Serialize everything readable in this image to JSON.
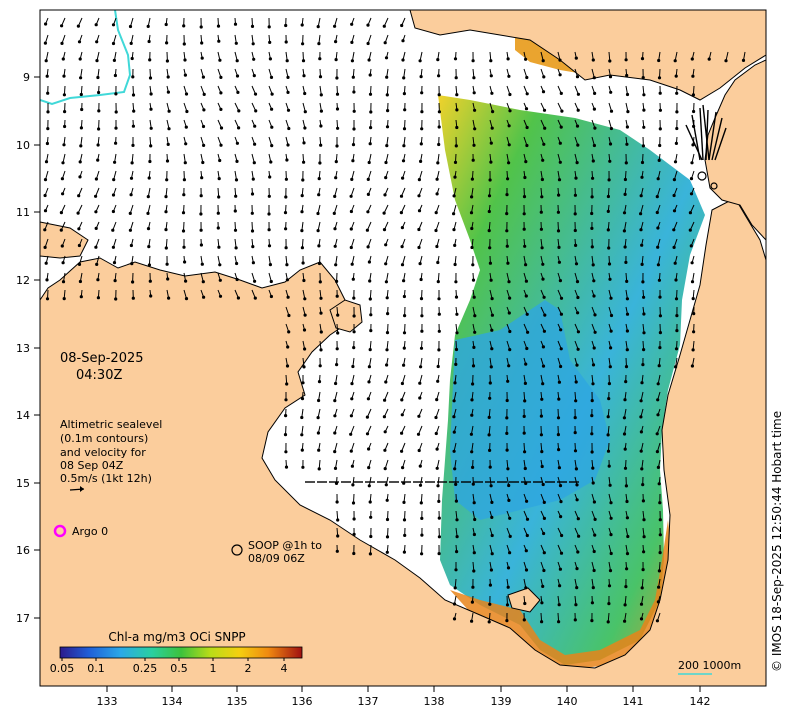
{
  "map": {
    "datetime_line1": "08-Sep-2025",
    "datetime_line2": "04:30Z",
    "sealevel_note": [
      "Altimetric sealevel",
      "(0.1m contours)",
      "and velocity for",
      "08 Sep 04Z",
      "0.5m/s (1kt 12h)"
    ],
    "argo_label": "Argo 0",
    "argo_color": "#ff00ff",
    "soop_label_line1": "SOOP @1h to",
    "soop_label_line2": "08/09 06Z",
    "credit": "© IMOS 18-Sep-2025 12:50:44 Hobart time",
    "scale_label": "200  1000m",
    "land_color": "#fbcd9c",
    "coast_color": "#000000",
    "contour_color": "#40d8d8"
  },
  "axes": {
    "lat_ticks": [
      "9",
      "10",
      "11",
      "12",
      "13",
      "14",
      "15",
      "16",
      "17"
    ],
    "lon_ticks": [
      "133",
      "134",
      "135",
      "136",
      "137",
      "138",
      "139",
      "140",
      "141",
      "142"
    ]
  },
  "colorbar": {
    "title": "Chl-a mg/m3 OCi SNPP",
    "ticks": [
      "0.05",
      "0.1",
      "0.25",
      "0.5",
      "1",
      "2",
      "4"
    ]
  }
}
